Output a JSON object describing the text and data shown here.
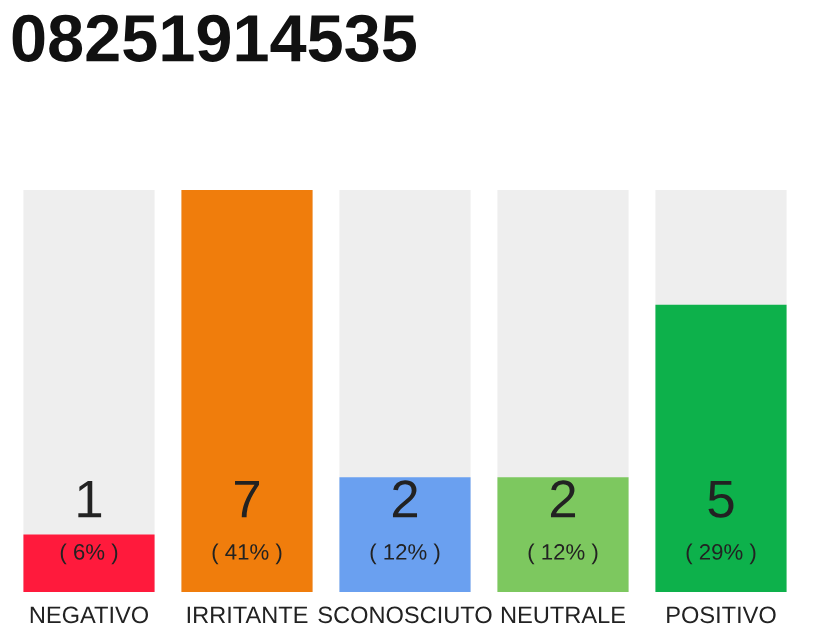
{
  "chart_data": {
    "type": "bar",
    "title": "08251914535",
    "categories": [
      "NEGATIVO",
      "IRRITANTE",
      "SCONOSCIUTO",
      "NEUTRALE",
      "POSITIVO"
    ],
    "values": [
      1,
      7,
      2,
      2,
      5
    ],
    "colors": [
      "#ff1a3c",
      "#f07d0c",
      "#6aa0f0",
      "#7dc85f",
      "#0db14b"
    ],
    "value_labels": [
      "1\n( 6% )",
      "7\n( 41% )",
      "2\n( 12% )",
      "2\n( 12% )",
      "5\n( 29% )"
    ],
    "ylim": [
      0,
      7
    ],
    "tick_labels": "x",
    "grid": false,
    "legend": false
  }
}
